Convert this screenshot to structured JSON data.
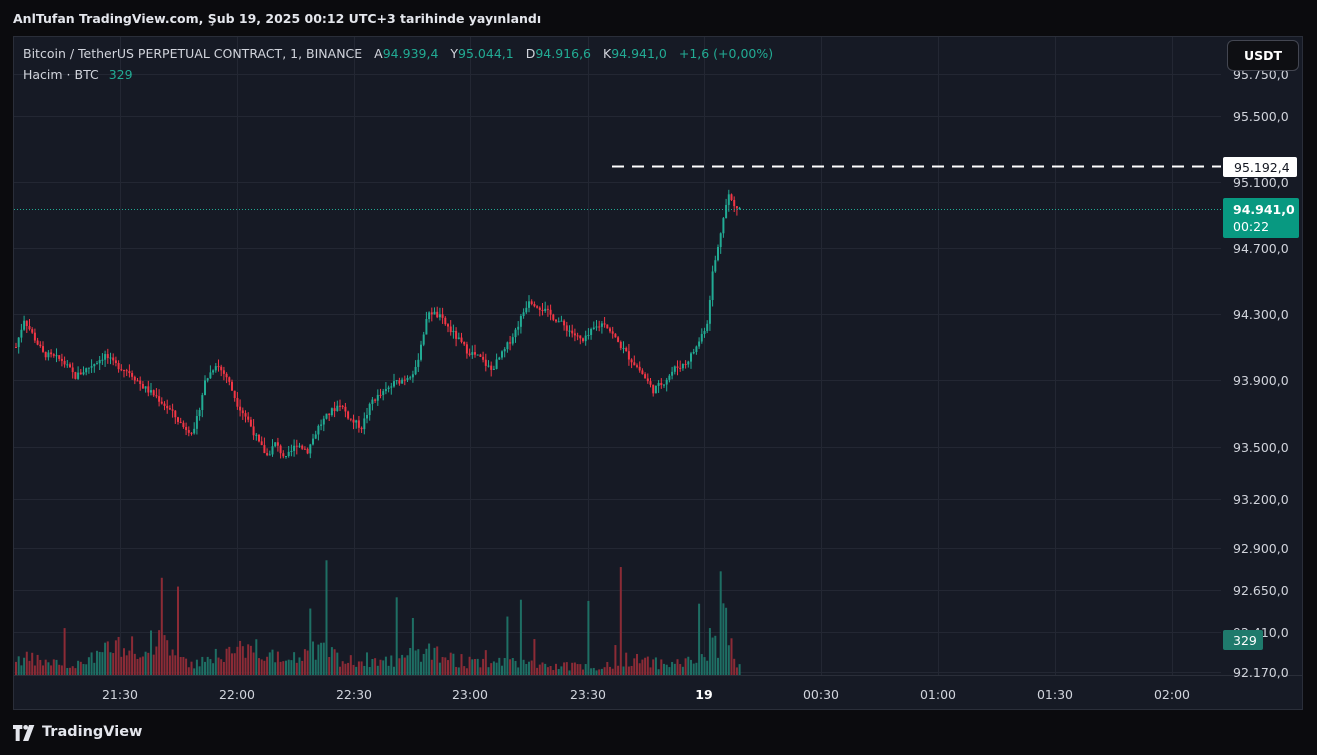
{
  "header": {
    "caption": "AnlTufan TradingView.com, Şub 19, 2025 00:12 UTC+3 tarihinde yayınlandı"
  },
  "legend": {
    "symbol": "Bitcoin / TetherUS PERPETUAL CONTRACT, 1, BINANCE",
    "open_label": "A",
    "open": "94.939,4",
    "high_label": "Y",
    "high": "95.044,1",
    "low_label": "D",
    "low": "94.916,6",
    "close_label": "K",
    "close": "94.941,0",
    "change": "+1,6 (+0,00%)",
    "volume_label": "Hacim · BTC",
    "volume": "329"
  },
  "currency_button": "USDT",
  "footer": {
    "brand": "TradingView"
  },
  "colors": {
    "up": "#22ab94",
    "down": "#f23645",
    "background": "#161a25",
    "grid": "#232733",
    "text": "#d1d4dc"
  },
  "chart_data": {
    "type": "candlestick",
    "symbol": "BTCUSDT.P",
    "interval": "1",
    "y_ticks": [
      "95.750,0",
      "95.500,0",
      "95.100,0",
      "94.700,0",
      "94.300,0",
      "93.900,0",
      "93.500,0",
      "93.200,0",
      "92.900,0",
      "92.650,0",
      "92.410,0",
      "92.170,0"
    ],
    "x_ticks": [
      "21:30",
      "22:00",
      "22:30",
      "23:00",
      "23:30",
      "19",
      "00:30",
      "01:00",
      "01:30",
      "02:00"
    ],
    "x_ticks_bold": [
      "19"
    ],
    "dashed_line": {
      "label": "95.192,4"
    },
    "last_price": {
      "value": "94.941,0",
      "countdown": "00:22"
    },
    "volume_marker": "329",
    "price_path": [
      [
        0,
        94100
      ],
      [
        3,
        94270
      ],
      [
        6,
        94180
      ],
      [
        10,
        94060
      ],
      [
        17,
        94020
      ],
      [
        22,
        93920
      ],
      [
        28,
        93990
      ],
      [
        33,
        94050
      ],
      [
        36,
        94000
      ],
      [
        42,
        93950
      ],
      [
        47,
        93860
      ],
      [
        52,
        93800
      ],
      [
        57,
        93720
      ],
      [
        62,
        93620
      ],
      [
        66,
        93590
      ],
      [
        70,
        93890
      ],
      [
        74,
        94000
      ],
      [
        78,
        93920
      ],
      [
        82,
        93760
      ],
      [
        86,
        93660
      ],
      [
        90,
        93520
      ],
      [
        93,
        93450
      ],
      [
        96,
        93520
      ],
      [
        100,
        93430
      ],
      [
        104,
        93520
      ],
      [
        108,
        93480
      ],
      [
        112,
        93620
      ],
      [
        116,
        93700
      ],
      [
        120,
        93760
      ],
      [
        124,
        93660
      ],
      [
        128,
        93620
      ],
      [
        132,
        93780
      ],
      [
        136,
        93820
      ],
      [
        140,
        93880
      ],
      [
        144,
        93910
      ],
      [
        148,
        93960
      ],
      [
        150,
        94120
      ],
      [
        153,
        94320
      ],
      [
        157,
        94280
      ],
      [
        162,
        94180
      ],
      [
        167,
        94080
      ],
      [
        172,
        94030
      ],
      [
        176,
        93960
      ],
      [
        181,
        94080
      ],
      [
        185,
        94200
      ],
      [
        190,
        94390
      ],
      [
        195,
        94330
      ],
      [
        200,
        94270
      ],
      [
        205,
        94200
      ],
      [
        210,
        94130
      ],
      [
        214,
        94210
      ],
      [
        218,
        94250
      ],
      [
        222,
        94150
      ],
      [
        227,
        94040
      ],
      [
        231,
        93960
      ],
      [
        236,
        93840
      ],
      [
        240,
        93890
      ],
      [
        244,
        93970
      ],
      [
        248,
        94000
      ],
      [
        252,
        94100
      ],
      [
        256,
        94250
      ],
      [
        258,
        94550
      ],
      [
        260,
        94700
      ],
      [
        262,
        94900
      ],
      [
        264,
        95020
      ],
      [
        266,
        94950
      ],
      [
        268,
        94941
      ]
    ],
    "volume_path": [
      [
        0,
        8
      ],
      [
        10,
        6
      ],
      [
        20,
        5
      ],
      [
        30,
        10
      ],
      [
        40,
        12
      ],
      [
        50,
        14
      ],
      [
        55,
        17
      ],
      [
        60,
        9
      ],
      [
        66,
        6
      ],
      [
        70,
        8
      ],
      [
        78,
        10
      ],
      [
        84,
        11
      ],
      [
        90,
        15
      ],
      [
        96,
        7
      ],
      [
        104,
        9
      ],
      [
        114,
        12
      ],
      [
        122,
        6
      ],
      [
        130,
        7
      ],
      [
        140,
        6
      ],
      [
        150,
        10
      ],
      [
        152,
        13
      ],
      [
        160,
        8
      ],
      [
        170,
        5
      ],
      [
        180,
        6
      ],
      [
        190,
        5
      ],
      [
        200,
        4
      ],
      [
        210,
        4
      ],
      [
        220,
        4
      ],
      [
        226,
        8
      ],
      [
        232,
        6
      ],
      [
        240,
        5
      ],
      [
        250,
        6
      ],
      [
        256,
        10
      ],
      [
        258,
        22
      ],
      [
        260,
        12
      ],
      [
        262,
        30
      ],
      [
        264,
        20
      ],
      [
        266,
        8
      ],
      [
        268,
        5
      ]
    ]
  }
}
